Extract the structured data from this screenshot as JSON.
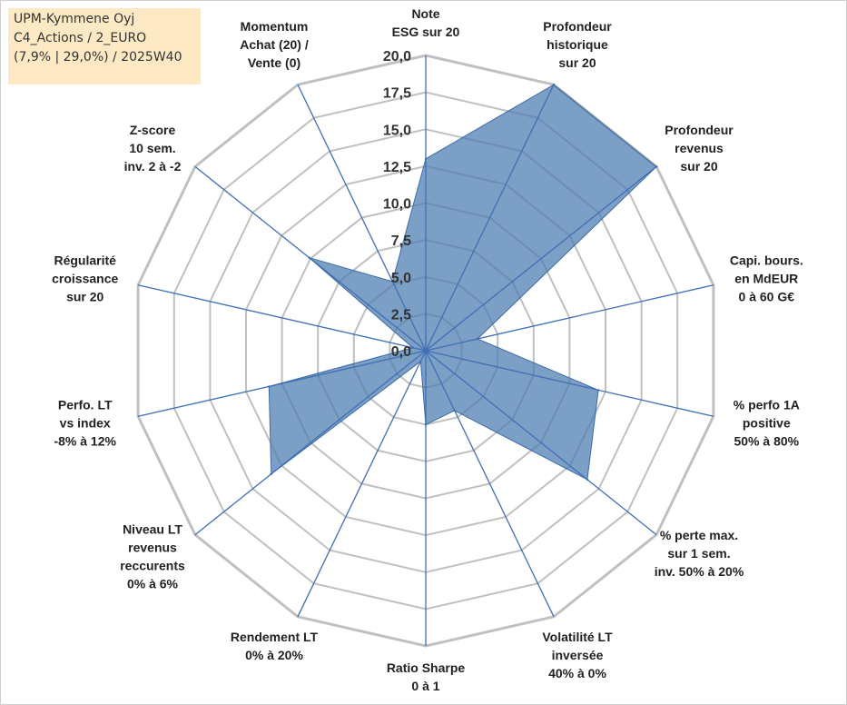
{
  "info_box": {
    "line1": "UPM-Kymmene Oyj",
    "line2": "C4_Actions / 2_EURO",
    "line3": "(7,9% | 29,0%) / 2025W40"
  },
  "chart_data": {
    "type": "radar",
    "rlim": [
      0,
      20
    ],
    "ticks": [
      "0,0",
      "2,5",
      "5,0",
      "7,5",
      "10,0",
      "12,5",
      "15,0",
      "17,5",
      "20,0"
    ],
    "grid": true,
    "axes": [
      {
        "lines": [
          "Note",
          "ESG sur 20"
        ]
      },
      {
        "lines": [
          "Profondeur",
          "historique",
          "sur 20"
        ]
      },
      {
        "lines": [
          "Profondeur",
          "revenus",
          "sur 20"
        ]
      },
      {
        "lines": [
          "Capi. bours.",
          "en MdEUR",
          "0 à 60 G€"
        ]
      },
      {
        "lines": [
          "% perfo 1A",
          "positive",
          "50% à 80%"
        ]
      },
      {
        "lines": [
          "% perte max.",
          "sur 1 sem.",
          "inv. 50% à 20%"
        ]
      },
      {
        "lines": [
          "Volatilité LT",
          "inversée",
          "40% à 0%"
        ]
      },
      {
        "lines": [
          "Ratio Sharpe",
          "0 à 1"
        ]
      },
      {
        "lines": [
          "Rendement LT",
          "0% à 20%"
        ]
      },
      {
        "lines": [
          "Niveau LT",
          "revenus",
          "reccurents",
          "0% à 6%"
        ]
      },
      {
        "lines": [
          "Perfo. LT",
          "vs index",
          "-8% à 12%"
        ]
      },
      {
        "lines": [
          "Régularité",
          "croissance",
          "sur 20"
        ]
      },
      {
        "lines": [
          "Z-score",
          "10 sem.",
          "inv. 2 à -2"
        ]
      },
      {
        "lines": [
          "Momentum",
          "Achat (20) /",
          "Vente (0)"
        ]
      }
    ],
    "series": [
      {
        "values": [
          13.0,
          20.0,
          20.0,
          3.6,
          12.0,
          14.0,
          4.5,
          5.0,
          0.8,
          13.4,
          10.9,
          0.9,
          10.1,
          5.2
        ]
      }
    ],
    "colors": {
      "fill": "#4a7ab0",
      "line": "#3c6aa8",
      "grid": "#c0c0c0",
      "spoke": "#3f6fb5"
    }
  }
}
